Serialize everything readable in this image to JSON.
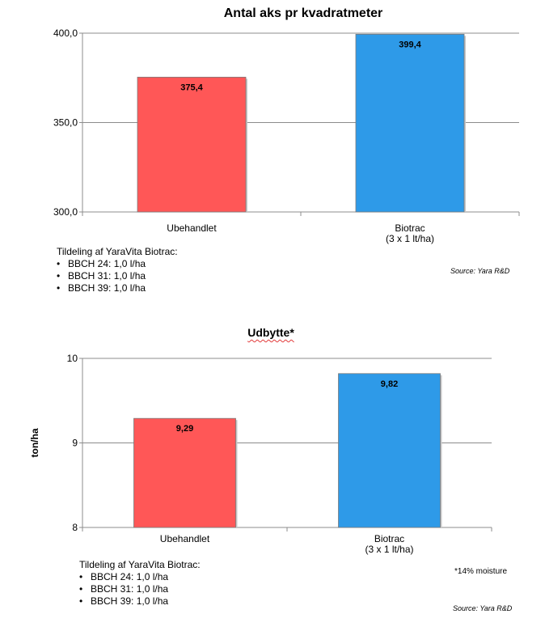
{
  "chart_data": [
    {
      "type": "bar",
      "title": "Antal aks pr kvadratmeter",
      "categories": [
        "Ubehandlet",
        "Biotrac\n(3 x 1 lt/ha)"
      ],
      "values": [
        375.4,
        399.4
      ],
      "value_labels": [
        "375,4",
        "399,4"
      ],
      "colors": [
        "#ff5757",
        "#2e9ae8"
      ],
      "xlabel": "",
      "ylabel": "",
      "ylim": [
        300,
        400
      ],
      "yticks": [
        300,
        350,
        400
      ],
      "ytick_labels": [
        "300,0",
        "350,0",
        "400,0"
      ],
      "grid": true
    },
    {
      "type": "bar",
      "title": "Udbytte*",
      "categories": [
        "Ubehandlet",
        "Biotrac\n(3 x 1 lt/ha)"
      ],
      "values": [
        9.29,
        9.82
      ],
      "value_labels": [
        "9,29",
        "9,82"
      ],
      "colors": [
        "#ff5757",
        "#2e9ae8"
      ],
      "xlabel": "",
      "ylabel": "ton/ha",
      "ylim": [
        8,
        10
      ],
      "yticks": [
        8,
        9,
        10
      ],
      "ytick_labels": [
        "8",
        "9",
        "10"
      ],
      "grid": true
    }
  ],
  "notes": [
    {
      "heading": "Tildeling af YaraVita Biotrac:",
      "items": [
        "BBCH 24: 1,0 l/ha",
        "BBCH 31: 1,0 l/ha",
        "BBCH 39: 1,0 l/ha"
      ]
    },
    {
      "heading": "Tildeling af YaraVita Biotrac:",
      "items": [
        "BBCH 24: 1,0 l/ha",
        "BBCH 31: 1,0 l/ha",
        "BBCH 39: 1,0 l/ha"
      ]
    }
  ],
  "sources": [
    "Source: Yara R&D",
    "Source: Yara R&D"
  ],
  "footnote": "*14% moisture"
}
